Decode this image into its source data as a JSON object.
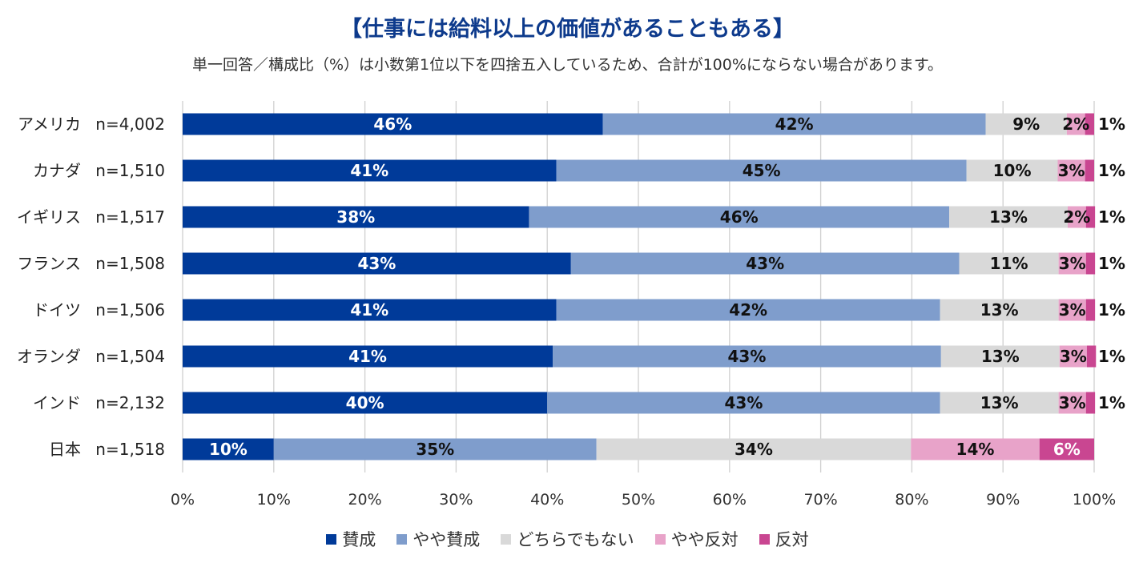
{
  "chart_data": {
    "type": "bar",
    "orientation": "horizontal",
    "stacked": true,
    "title": "【仕事には給料以上の価値があることもある】",
    "subtitle": "単一回答／構成比（%）は小数第1位以下を四捨五入しているため、合計が100%にならない場合があります。",
    "categories": [
      "アメリカ",
      "カナダ",
      "イギリス",
      "フランス",
      "ドイツ",
      "オランダ",
      "インド",
      "日本"
    ],
    "sample_sizes": [
      "n=4,002",
      "n=1,510",
      "n=1,517",
      "n=1,508",
      "n=1,506",
      "n=1,504",
      "n=2,132",
      "n=1,518"
    ],
    "series": [
      {
        "name": "賛成",
        "color": "#003a99",
        "label_color": "#ffffff",
        "values": [
          46.1,
          41.0,
          38.0,
          42.6,
          41.0,
          40.6,
          40.0,
          10.0
        ],
        "labels": [
          "46%",
          "41%",
          "38%",
          "43%",
          "41%",
          "41%",
          "40%",
          "10%"
        ]
      },
      {
        "name": "やや賛成",
        "color": "#7f9dcc",
        "label_color": "#111111",
        "values": [
          42.0,
          45.0,
          46.1,
          42.6,
          42.1,
          42.6,
          43.1,
          35.4
        ],
        "labels": [
          "42%",
          "45%",
          "46%",
          "43%",
          "42%",
          "43%",
          "43%",
          "35%"
        ]
      },
      {
        "name": "どちらでもない",
        "color": "#d9d9d9",
        "label_color": "#111111",
        "values": [
          8.9,
          10.0,
          13.0,
          10.9,
          13.0,
          13.0,
          13.0,
          34.5
        ],
        "labels": [
          "9%",
          "10%",
          "13%",
          "11%",
          "13%",
          "13%",
          "13%",
          "34%"
        ]
      },
      {
        "name": "やや反対",
        "color": "#e8a3c9",
        "label_color": "#111111",
        "values": [
          2.0,
          3.0,
          2.0,
          3.0,
          3.0,
          3.0,
          3.0,
          14.1
        ],
        "labels": [
          "2%",
          "3%",
          "2%",
          "3%",
          "3%",
          "3%",
          "3%",
          "14%"
        ]
      },
      {
        "name": "反対",
        "color": "#c94691",
        "label_color": "#ffffff",
        "values": [
          1.0,
          1.0,
          1.0,
          1.0,
          1.0,
          1.0,
          1.0,
          6.0
        ],
        "labels": [
          "1%",
          "1%",
          "1%",
          "1%",
          "1%",
          "1%",
          "1%",
          "6%"
        ]
      }
    ],
    "xlim": [
      0,
      100
    ],
    "x_ticks": [
      "0%",
      "10%",
      "20%",
      "30%",
      "40%",
      "50%",
      "60%",
      "70%",
      "80%",
      "90%",
      "100%"
    ],
    "grid": true,
    "legend_position": "bottom"
  }
}
